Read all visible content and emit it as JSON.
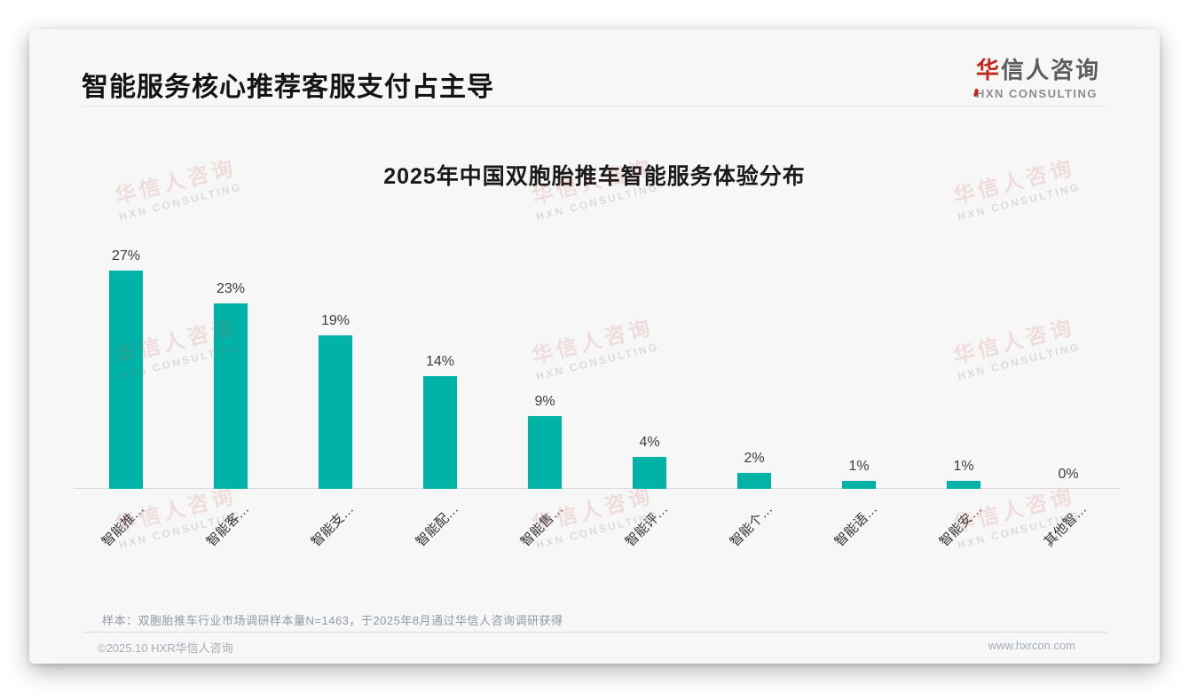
{
  "page": {
    "header": {
      "title": "智能服务核心推荐客服支付占主导"
    },
    "logo": {
      "cn_accent": "华",
      "cn_rest": "信人咨询",
      "en": "HXN CONSULTING",
      "accent_color": "#c0281e"
    },
    "watermark": {
      "cn": "华信人咨询",
      "en": "HXN CONSULTING"
    },
    "footnote": "样本：双胞胎推车行业市场调研样本量N=1463，于2025年8月通过华信人咨询调研获得",
    "footer": {
      "left": "©2025.10 HXR华信人咨询",
      "right": "www.hxrcon.com"
    }
  },
  "chart_data": {
    "type": "bar",
    "title": "2025年中国双胞胎推车智能服务体验分布",
    "categories": [
      "智能推…",
      "智能客…",
      "智能支…",
      "智能配…",
      "智能售…",
      "智能评…",
      "智能个…",
      "智能语…",
      "智能安…",
      "其他智…"
    ],
    "values": [
      27,
      23,
      19,
      14,
      9,
      4,
      2,
      1,
      1,
      0
    ],
    "value_labels": [
      "27%",
      "23%",
      "19%",
      "14%",
      "9%",
      "4%",
      "2%",
      "1%",
      "1%",
      "0%"
    ],
    "value_suffix": "%",
    "bar_color": "#00b3a6",
    "label_color": "#3d3d3d",
    "axis_color": "#d9d9d9",
    "ylim": [
      0,
      28.5
    ],
    "grid": false,
    "legend": false,
    "xlabel": "",
    "ylabel": ""
  }
}
